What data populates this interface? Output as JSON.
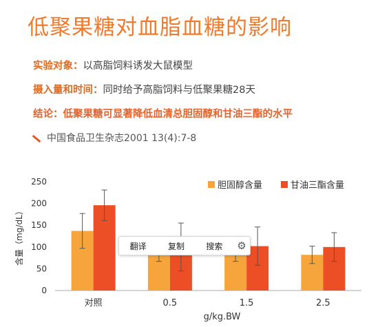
{
  "title": "低聚果糖对血脂血糖的影响",
  "info": {
    "subject_key": "实验对象：",
    "subject_val": "以高脂饲料诱发大鼠模型",
    "dose_key": "摄入量和时间：",
    "dose_val": "同时给予高脂饲料与低聚果糖28天",
    "conclusion": "结论：低聚果糖可显著降低血清总胆固醇和甘油三酯的水平",
    "source": "中国食品卫生杂志2001 13(4):7-8"
  },
  "popup": {
    "translate": "翻译",
    "copy": "复制",
    "search": "搜索",
    "settings_icon": "gear-icon"
  },
  "chart_data": {
    "type": "bar",
    "categories": [
      "对照",
      "0.5",
      "1.5",
      "2.5"
    ],
    "xlabel": "g/kg.BW",
    "ylabel": "含量（mg/dL）",
    "ylim": [
      0,
      250
    ],
    "yticks": [
      0,
      50,
      100,
      150,
      200,
      250
    ],
    "grid": false,
    "legend_position": "top-right",
    "error_bars": true,
    "series": [
      {
        "name": "胆固醇含量",
        "color": "#f5a53c",
        "values": [
          137,
          87,
          87,
          82
        ],
        "errors": [
          40,
          20,
          20,
          20
        ]
      },
      {
        "name": "甘油三酯含量",
        "color": "#ec4f25",
        "values": [
          196,
          100,
          102,
          100
        ],
        "errors": [
          35,
          55,
          44,
          33
        ]
      }
    ]
  }
}
